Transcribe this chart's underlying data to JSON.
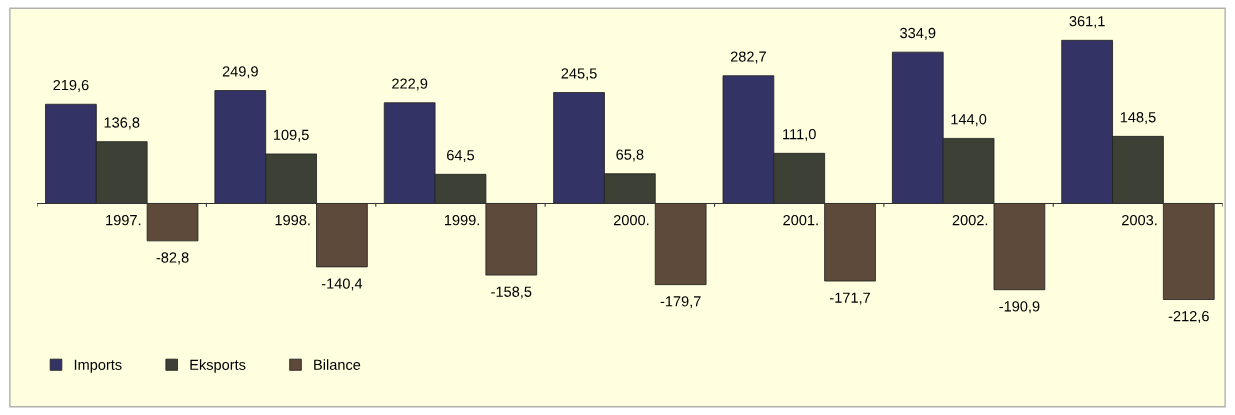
{
  "chart_data": {
    "type": "bar",
    "categories": [
      "1997.",
      "1998.",
      "1999.",
      "2000.",
      "2001.",
      "2002.",
      "2003."
    ],
    "series": [
      {
        "name": "Imports",
        "color": "#333366",
        "values": [
          219.6,
          249.9,
          222.9,
          245.5,
          282.7,
          334.9,
          361.1
        ],
        "value_labels": [
          "219,6",
          "249,9",
          "222,9",
          "245,5",
          "282,7",
          "334,9",
          "361,1"
        ]
      },
      {
        "name": "Eksports",
        "color": "#3d4035",
        "values": [
          136.8,
          109.5,
          64.5,
          65.8,
          111.0,
          144.0,
          148.5
        ],
        "value_labels": [
          "136,8",
          "109,5",
          "64,5",
          "65,8",
          "111,0",
          "144,0",
          "148,5"
        ]
      },
      {
        "name": "Bilance",
        "color": "#5e4a3a",
        "values": [
          -82.8,
          -140.4,
          -158.5,
          -179.7,
          -171.7,
          -190.9,
          -212.6
        ],
        "value_labels": [
          "-82,8",
          "-140,4",
          "-158,5",
          "-179,7",
          "-171,7",
          "-190,9",
          "-212,6"
        ]
      }
    ],
    "legend": "bottom left"
  }
}
